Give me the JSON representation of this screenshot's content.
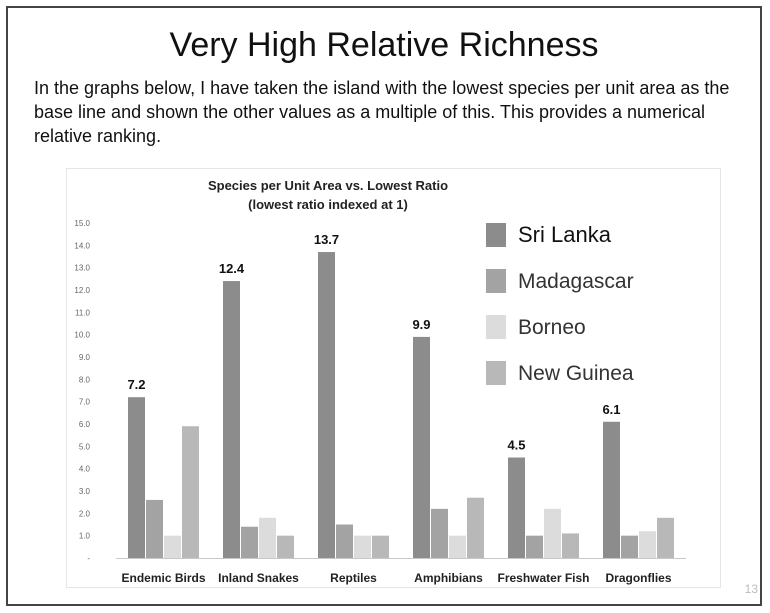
{
  "slide": {
    "title": "Very High Relative Richness",
    "intro": "In the graphs below, I have taken the island with the lowest species per unit area as the base line and shown the other values as a multiple of this. This provides a numerical relative ranking.",
    "page_number": "13"
  },
  "chart_data": {
    "type": "bar",
    "title": "Species per Unit Area vs. Lowest Ratio",
    "subtitle": "(lowest ratio indexed at 1)",
    "xlabel": "",
    "ylabel": "",
    "ylim": [
      0,
      15
    ],
    "yticks": [
      "-",
      "1.0",
      "2.0",
      "3.0",
      "4.0",
      "5.0",
      "6.0",
      "7.0",
      "8.0",
      "9.0",
      "10.0",
      "11.0",
      "12.0",
      "13.0",
      "14.0",
      "15.0"
    ],
    "grid": false,
    "legend_position": "right",
    "categories": [
      "Endemic Birds",
      "Inland Snakes",
      "Reptiles",
      "Amphibians",
      "Freshwater Fish",
      "Dragonflies"
    ],
    "series": [
      {
        "name": "Sri Lanka",
        "color": "#8c8c8c",
        "values": [
          7.2,
          12.4,
          13.7,
          9.9,
          4.5,
          6.1
        ],
        "labels": [
          "7.2",
          "12.4",
          "13.7",
          "9.9",
          "4.5",
          "6.1"
        ]
      },
      {
        "name": "Madagascar",
        "color": "#a3a3a3",
        "values": [
          2.6,
          1.4,
          1.5,
          2.2,
          1.0,
          1.0
        ]
      },
      {
        "name": "Borneo",
        "color": "#dcdcdc",
        "values": [
          1.0,
          1.8,
          1.0,
          1.0,
          2.2,
          1.2
        ]
      },
      {
        "name": "New Guinea",
        "color": "#b8b8b8",
        "values": [
          5.9,
          1.0,
          1.0,
          2.7,
          1.1,
          1.8
        ]
      }
    ]
  }
}
